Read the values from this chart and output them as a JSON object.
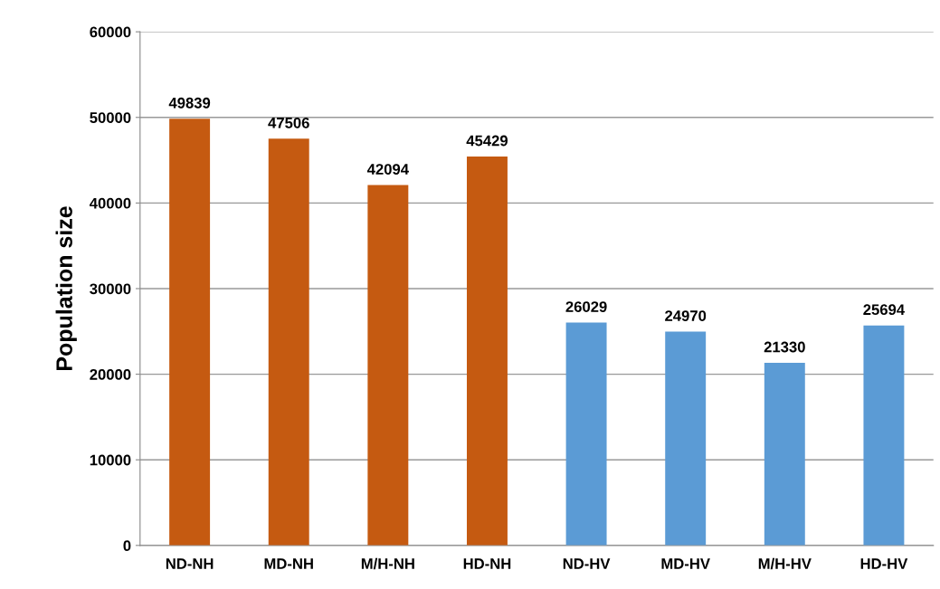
{
  "chart_data": {
    "type": "bar",
    "ylabel": "Population size",
    "categories": [
      "ND-NH",
      "MD-NH",
      "M/H-NH",
      "HD-NH",
      "ND-HV",
      "MD-HV",
      "M/H-HV",
      "HD-HV"
    ],
    "values": [
      49839,
      47506,
      42094,
      45429,
      26029,
      24970,
      21330,
      25694
    ],
    "colors": [
      "#c55a11",
      "#c55a11",
      "#c55a11",
      "#c55a11",
      "#5b9bd5",
      "#5b9bd5",
      "#5b9bd5",
      "#5b9bd5"
    ],
    "ylim": [
      0,
      60000
    ],
    "yticks": [
      0,
      10000,
      20000,
      30000,
      40000,
      50000,
      60000
    ],
    "grid": "y",
    "data_labels": true
  }
}
